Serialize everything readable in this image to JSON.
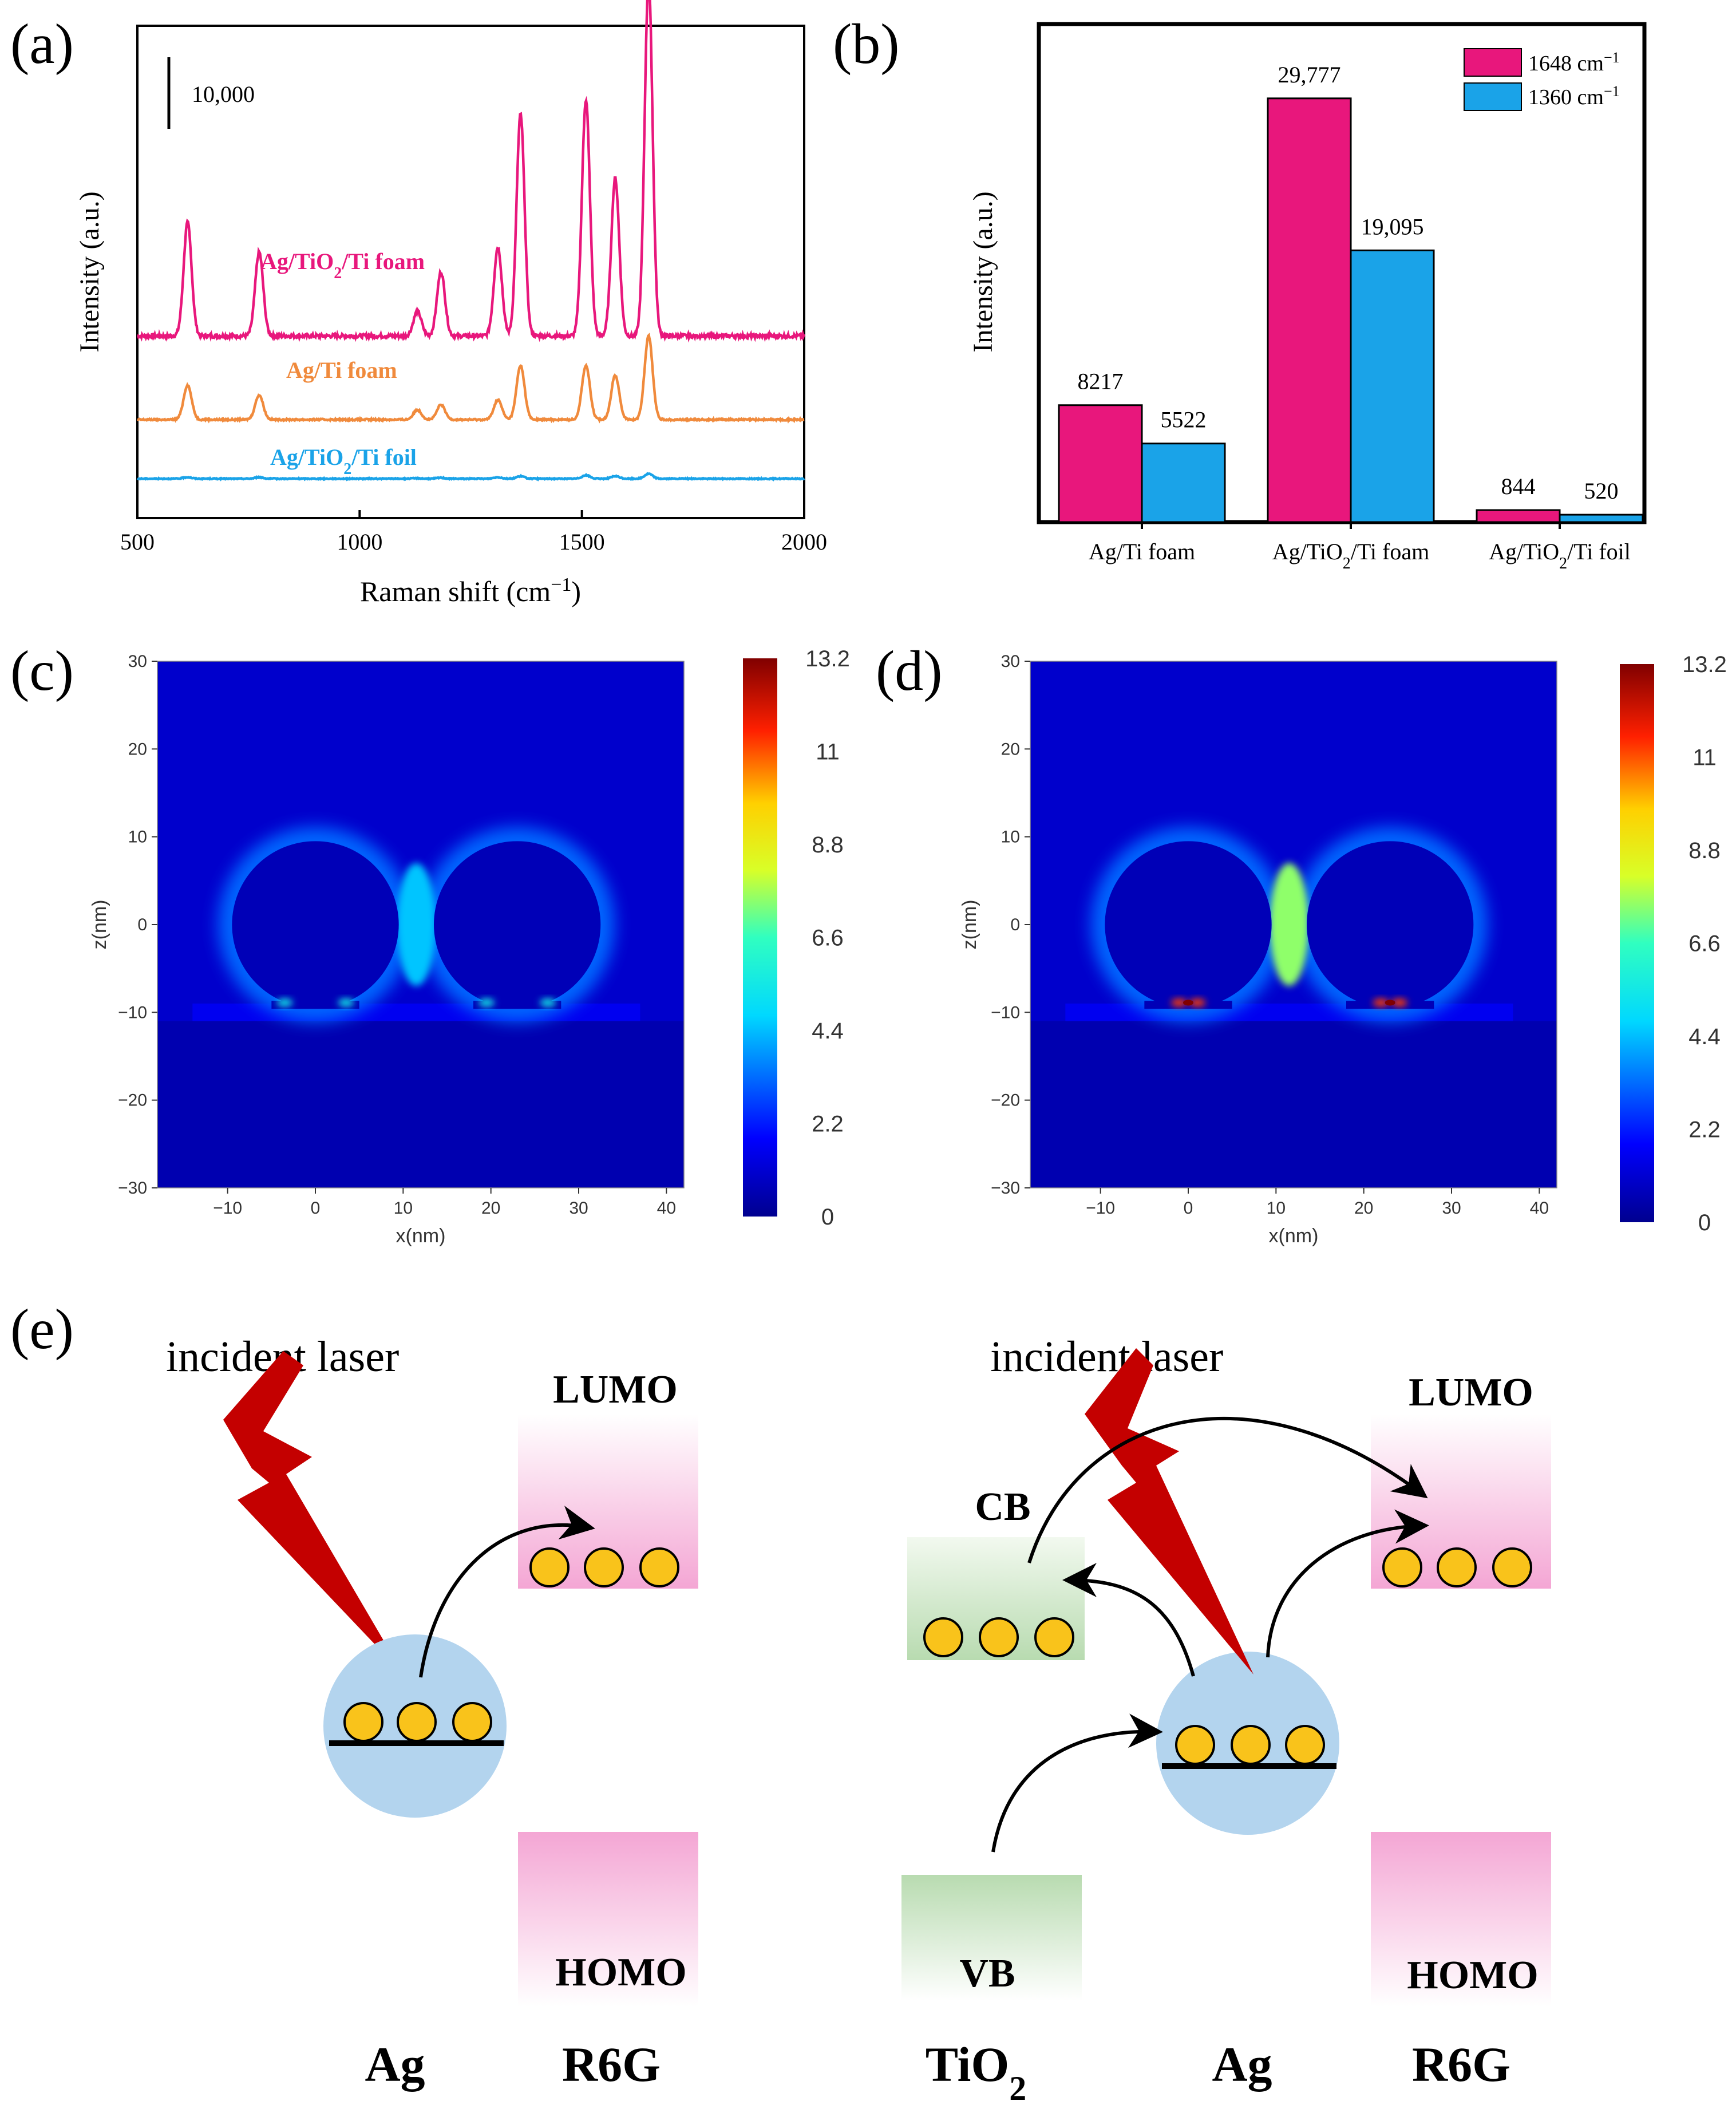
{
  "panel_labels": {
    "a": "(a)",
    "b": "(b)",
    "c": "(c)",
    "d": "(d)",
    "e": "(e)"
  },
  "chart_data": [
    {
      "panel": "a",
      "type": "line",
      "xlabel": "Raman shift (cm",
      "xlabel_sup": "−1",
      "xlabel_end": ")",
      "ylabel": "Intensity (a.u.)",
      "xlim": [
        500,
        2000
      ],
      "xticks": [
        "500",
        "1000",
        "1500",
        "2000"
      ],
      "scale_bar_label": "10,000",
      "scale_bar_value": 10000,
      "peaks": [
        613,
        774,
        1130,
        1183,
        1311,
        1362,
        1509,
        1575,
        1650
      ],
      "series": [
        {
          "name": "Ag/TiO",
          "name_sub": "2",
          "name_end": "/Ti foam",
          "color": "#e8177c",
          "baseline": 0.37,
          "amplitudes": [
            0.23,
            0.17,
            0.05,
            0.13,
            0.18,
            0.45,
            0.48,
            0.32,
            0.72
          ]
        },
        {
          "name": "Ag/Ti foam",
          "name_sub": "",
          "name_end": "",
          "color": "#f08a3c",
          "baseline": 0.2,
          "amplitudes": [
            0.07,
            0.05,
            0.02,
            0.03,
            0.04,
            0.11,
            0.11,
            0.09,
            0.17
          ]
        },
        {
          "name": "Ag/TiO",
          "name_sub": "2",
          "name_end": "/Ti foil",
          "color": "#1aa3e8",
          "baseline": 0.08,
          "amplitudes": [
            0.003,
            0.003,
            0.001,
            0.002,
            0.003,
            0.005,
            0.007,
            0.005,
            0.01
          ]
        }
      ]
    },
    {
      "panel": "b",
      "type": "bar",
      "ylabel": "Intensity (a.u.)",
      "ylim": [
        0,
        35000
      ],
      "categories": [
        {
          "main": "Ag/Ti foam",
          "sub": "",
          "end": ""
        },
        {
          "main": "Ag/TiO",
          "sub": "2",
          "end": "/Ti foam"
        },
        {
          "main": "Ag/TiO",
          "sub": "2",
          "end": "/Ti foil"
        }
      ],
      "series": [
        {
          "name": "1648 cm",
          "sup": "−1",
          "color": "#e8177c",
          "values": [
            8217,
            29777,
            844
          ],
          "labels": [
            "8217",
            "29,777",
            "844"
          ]
        },
        {
          "name": "1360 cm",
          "sup": "−1",
          "color": "#1aa3e8",
          "values": [
            5522,
            19095,
            520
          ],
          "labels": [
            "5522",
            "19,095",
            "520"
          ]
        }
      ]
    },
    {
      "panel": "c",
      "type": "heatmap",
      "xlabel": "x(nm)",
      "ylabel": "z(nm)",
      "xlim": [
        -18,
        42
      ],
      "ylim": [
        -30,
        30
      ],
      "xticks": [
        "−10",
        "0",
        "10",
        "20",
        "30",
        "40"
      ],
      "yticks": [
        "30",
        "20",
        "10",
        "0",
        "−10",
        "−20",
        "−30"
      ],
      "colorbar_ticks": [
        "13.2",
        "11",
        "8.8",
        "6.6",
        "4.4",
        "2.2",
        "0"
      ],
      "colorbar_range": [
        0,
        13.2
      ],
      "particles_x": [
        0,
        23
      ],
      "gap_field": 4.5,
      "hotspot_field": 6.5
    },
    {
      "panel": "d",
      "type": "heatmap",
      "xlabel": "x(nm)",
      "ylabel": "z(nm)",
      "xlim": [
        -18,
        42
      ],
      "ylim": [
        -30,
        30
      ],
      "xticks": [
        "−10",
        "0",
        "10",
        "20",
        "30",
        "40"
      ],
      "yticks": [
        "30",
        "20",
        "10",
        "0",
        "−10",
        "−20",
        "−30"
      ],
      "colorbar_ticks": [
        "13.2",
        "11",
        "8.8",
        "6.6",
        "4.4",
        "2.2",
        "0"
      ],
      "colorbar_range": [
        0,
        13.2
      ],
      "particles_x": [
        0,
        23
      ],
      "gap_field": 7.5,
      "hotspot_field": 13.2
    }
  ],
  "schematic": {
    "incident_laser": "incident laser",
    "lumo": "LUMO",
    "homo": "HOMO",
    "cb": "CB",
    "vb": "VB",
    "ag": "Ag",
    "r6g": "R6G",
    "tio2_main": "TiO",
    "tio2_sub": "2",
    "colors": {
      "laser": "#c40000",
      "particle": "#f9c31b",
      "ag_sphere": "#b3d4ee",
      "r6g_band": "#f4a6d4",
      "tio2_band": "#b8dbb0"
    }
  }
}
